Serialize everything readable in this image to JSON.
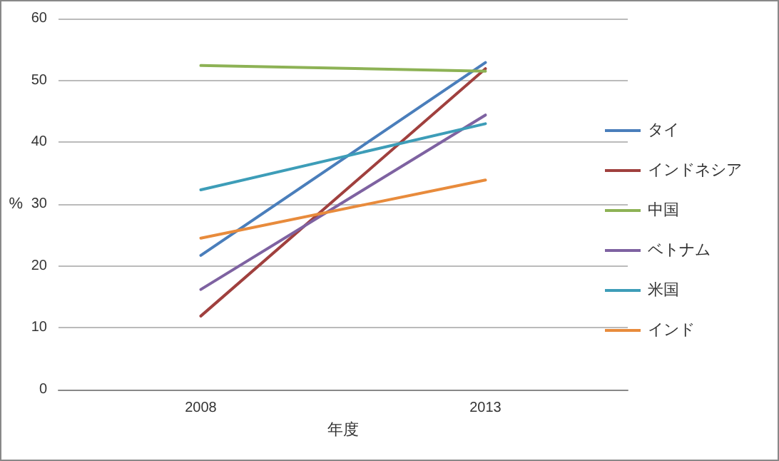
{
  "chart_data": {
    "type": "line",
    "xlabel": "年度",
    "ylabel": "%",
    "categories": [
      "2008",
      "2013"
    ],
    "series": [
      {
        "name": "タイ",
        "color": "#4a7ebb",
        "values": [
          21.7,
          52.9
        ]
      },
      {
        "name": "インドネシア",
        "color": "#a0403e",
        "values": [
          11.9,
          51.9
        ]
      },
      {
        "name": "中国",
        "color": "#8db255",
        "values": [
          52.4,
          51.5
        ]
      },
      {
        "name": "ベトナム",
        "color": "#7e62a1",
        "values": [
          16.2,
          44.4
        ]
      },
      {
        "name": "米国",
        "color": "#3d9db8",
        "values": [
          32.3,
          43.0
        ]
      },
      {
        "name": "インド",
        "color": "#e88b3c",
        "values": [
          24.5,
          33.9
        ]
      }
    ],
    "ylim": [
      0,
      60
    ],
    "yticks": [
      0,
      10,
      20,
      30,
      40,
      50,
      60
    ],
    "grid": "y",
    "legend": "right",
    "marker": "none",
    "line_style": "solid"
  }
}
